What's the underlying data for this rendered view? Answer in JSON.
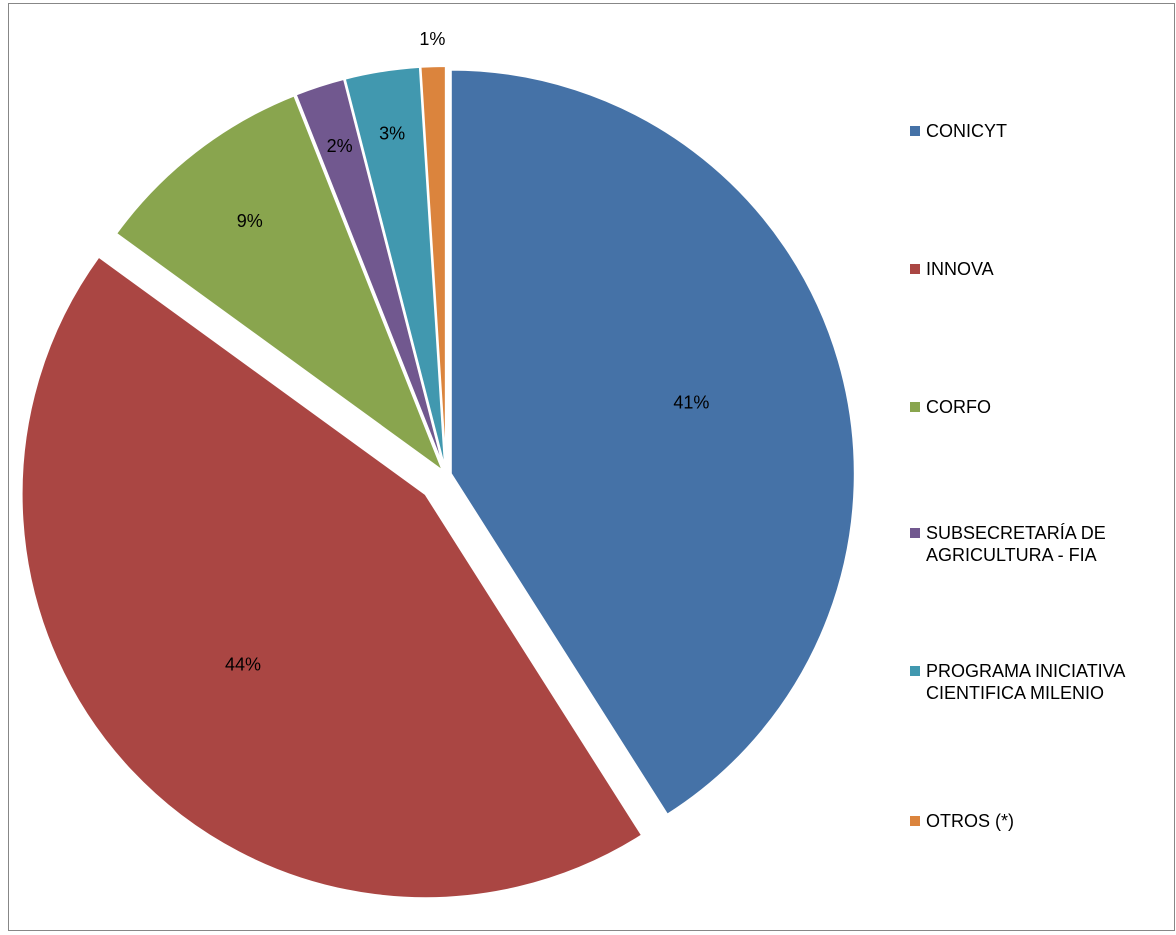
{
  "chart_data": {
    "type": "pie",
    "title": "",
    "legend_position": "right",
    "slices": [
      {
        "name": "CONICYT",
        "value": 41,
        "label": "41%",
        "color": "#4572A7",
        "exploded": false
      },
      {
        "name": "INNOVA",
        "value": 44,
        "label": "44%",
        "color": "#AA4643",
        "exploded": true
      },
      {
        "name": "CORFO",
        "value": 9,
        "label": "9%",
        "color": "#89A54E",
        "exploded": false
      },
      {
        "name": "SUBSECRETARÍA DE AGRICULTURA - FIA",
        "value": 2,
        "label": "2%",
        "color": "#71588F",
        "exploded": false
      },
      {
        "name": "PROGRAMA INICIATIVA CIENTIFICA MILENIO",
        "value": 3,
        "label": "3%",
        "color": "#4198AF",
        "exploded": false
      },
      {
        "name": "OTROS (*)",
        "value": 1,
        "label": "1%",
        "color": "#DB843D",
        "exploded": false
      }
    ]
  }
}
